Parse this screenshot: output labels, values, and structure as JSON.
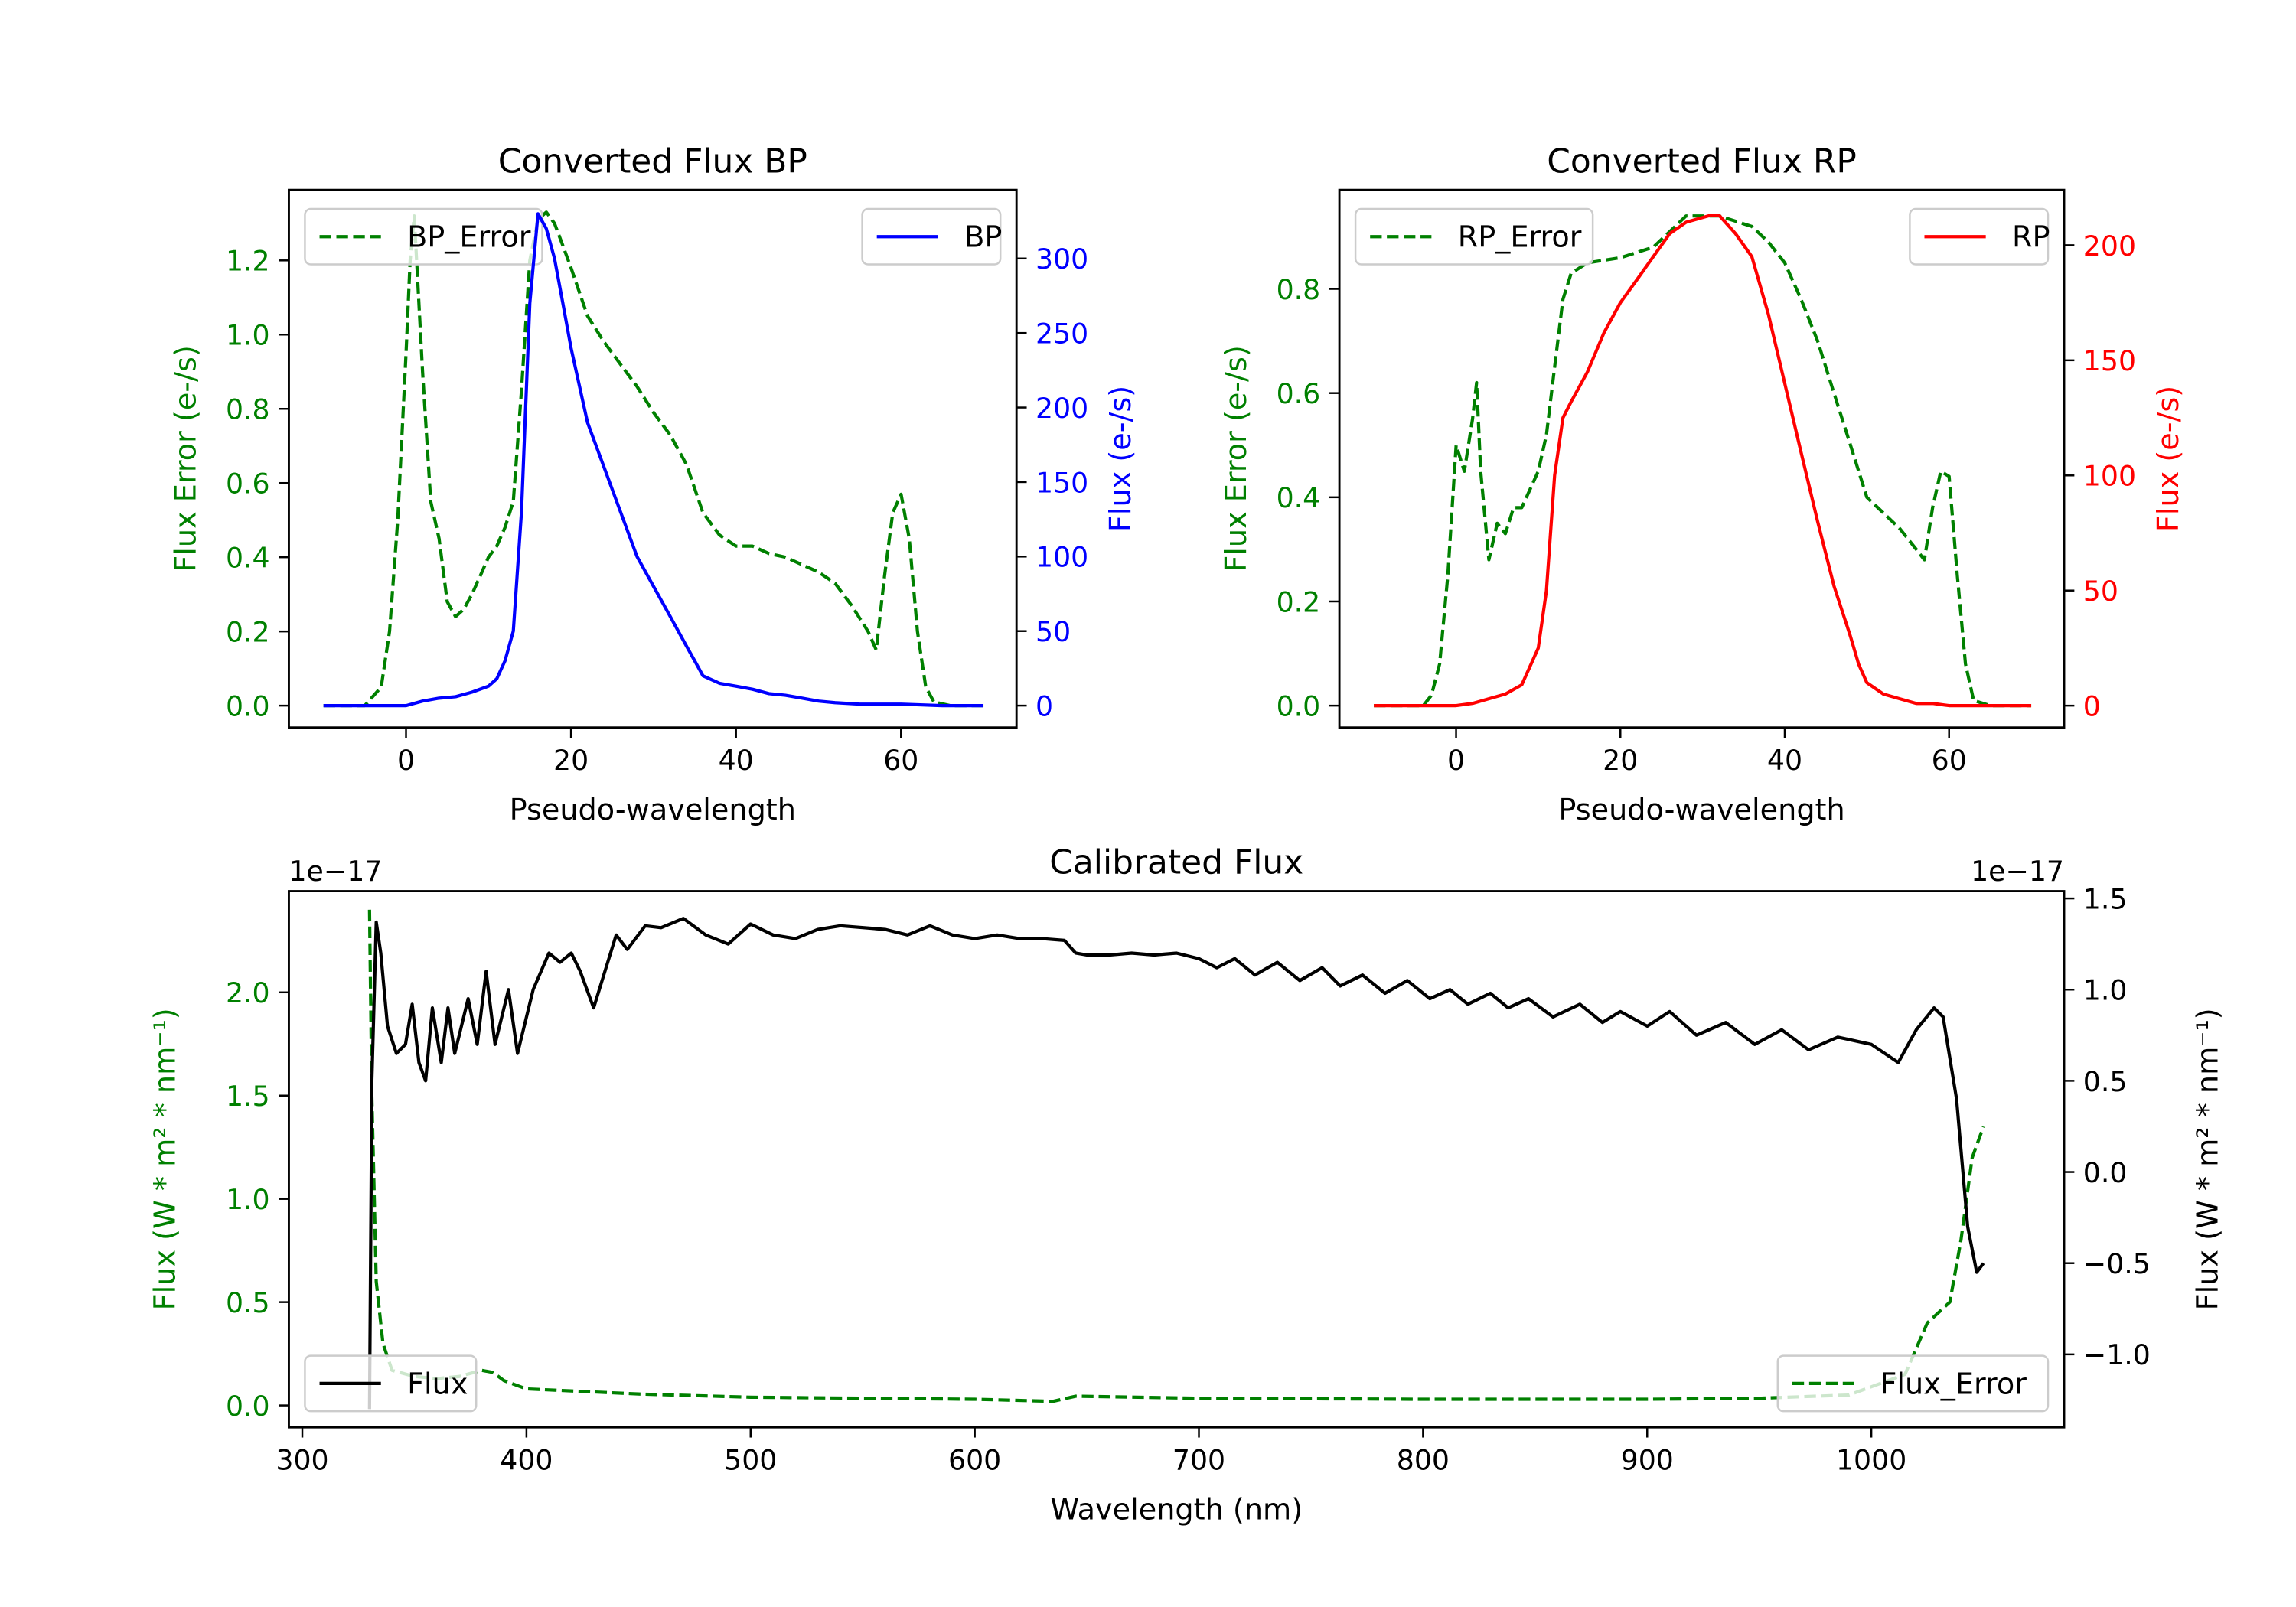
{
  "colors": {
    "error": "#008000",
    "bp": "#0000ff",
    "rp": "#ff0000",
    "flux": "#000000"
  },
  "chart_data": [
    {
      "type": "line",
      "title": "Converted Flux BP",
      "xlabel": "Pseudo-wavelength",
      "ylabel_left": "Flux Error (e-/s)",
      "ylabel_right": "Flux (e-/s)",
      "ylabel_right_color": "#0000ff",
      "ylabel_left_color": "#008000",
      "xlim": [
        -14.2,
        74
      ],
      "ylim_left": [
        -0.059,
        1.39
      ],
      "ylim_right": [
        -14.7,
        346
      ],
      "xticks": [
        0,
        20,
        40,
        60
      ],
      "yticks_left": [
        "0.0",
        "0.2",
        "0.4",
        "0.6",
        "0.8",
        "1.0",
        "1.2"
      ],
      "yticks_right": [
        "0",
        "50",
        "100",
        "150",
        "200",
        "250",
        "300"
      ],
      "legend_left": "upper-left",
      "legend_right": "upper-right",
      "series": [
        {
          "name": "BP_Error",
          "axis": "left",
          "color": "#008000",
          "style": "dashed",
          "x": [
            -10,
            -5,
            -3,
            -2,
            -1,
            0,
            0.5,
            1,
            2,
            3,
            4,
            5,
            6,
            7,
            8,
            9,
            10,
            11,
            12,
            13,
            14,
            15,
            16,
            17,
            18,
            19,
            20,
            22,
            24,
            26,
            28,
            30,
            32,
            34,
            36,
            38,
            40,
            42,
            44,
            46,
            48,
            50,
            52,
            54,
            56,
            57,
            58,
            59,
            60,
            61,
            62,
            63,
            64,
            66,
            70
          ],
          "y": [
            0,
            0,
            0.05,
            0.2,
            0.5,
            0.95,
            1.2,
            1.32,
            0.9,
            0.55,
            0.45,
            0.28,
            0.24,
            0.26,
            0.3,
            0.35,
            0.4,
            0.43,
            0.48,
            0.55,
            0.85,
            1.2,
            1.31,
            1.33,
            1.3,
            1.24,
            1.18,
            1.05,
            0.98,
            0.92,
            0.86,
            0.79,
            0.73,
            0.65,
            0.52,
            0.46,
            0.43,
            0.43,
            0.41,
            0.4,
            0.38,
            0.36,
            0.33,
            0.27,
            0.2,
            0.15,
            0.35,
            0.52,
            0.57,
            0.45,
            0.2,
            0.05,
            0.01,
            0,
            0
          ]
        },
        {
          "name": "BP",
          "axis": "right",
          "color": "#0000ff",
          "style": "solid",
          "x": [
            -10,
            0,
            2,
            4,
            6,
            8,
            10,
            11,
            12,
            13,
            14,
            15,
            16,
            17,
            18,
            19,
            20,
            22,
            24,
            26,
            28,
            30,
            32,
            34,
            35,
            36,
            38,
            40,
            42,
            44,
            46,
            48,
            50,
            52,
            55,
            60,
            65,
            70
          ],
          "y": [
            0,
            0,
            3,
            5,
            6,
            9,
            13,
            18,
            30,
            50,
            130,
            270,
            330,
            320,
            300,
            270,
            240,
            190,
            160,
            130,
            100,
            80,
            60,
            40,
            30,
            20,
            15,
            13,
            11,
            8,
            7,
            5,
            3,
            2,
            1,
            1,
            0,
            0
          ]
        }
      ]
    },
    {
      "type": "line",
      "title": "Converted Flux RP",
      "xlabel": "Pseudo-wavelength",
      "ylabel_left": "Flux Error (e-/s)",
      "ylabel_right": "Flux (e-/s)",
      "ylabel_right_color": "#ff0000",
      "ylabel_left_color": "#008000",
      "xlim": [
        -14.2,
        74
      ],
      "ylim_left": [
        -0.042,
        0.99
      ],
      "ylim_right": [
        -9.5,
        224
      ],
      "xticks": [
        0,
        20,
        40,
        60
      ],
      "yticks_left": [
        "0.0",
        "0.2",
        "0.4",
        "0.6",
        "0.8"
      ],
      "yticks_right": [
        "0",
        "50",
        "100",
        "150",
        "200"
      ],
      "legend_left": "upper-left",
      "legend_right": "upper-right",
      "series": [
        {
          "name": "RP_Error",
          "axis": "left",
          "color": "#008000",
          "style": "dashed",
          "x": [
            -10,
            -4,
            -3,
            -2,
            -1,
            0,
            1,
            2,
            2.5,
            3,
            4,
            5,
            6,
            7,
            8,
            10,
            11,
            12,
            13,
            14,
            16,
            20,
            22,
            24,
            26,
            28,
            30,
            32,
            34,
            36,
            38,
            40,
            42,
            44,
            46,
            48,
            50,
            52,
            54,
            56,
            57,
            58,
            59,
            60,
            61,
            62,
            63,
            65,
            70
          ],
          "y": [
            0,
            0,
            0.02,
            0.08,
            0.25,
            0.5,
            0.45,
            0.55,
            0.62,
            0.45,
            0.28,
            0.35,
            0.33,
            0.38,
            0.38,
            0.45,
            0.52,
            0.65,
            0.78,
            0.83,
            0.85,
            0.86,
            0.87,
            0.88,
            0.91,
            0.94,
            0.94,
            0.94,
            0.93,
            0.92,
            0.89,
            0.85,
            0.78,
            0.7,
            0.6,
            0.5,
            0.4,
            0.37,
            0.34,
            0.3,
            0.28,
            0.38,
            0.45,
            0.44,
            0.25,
            0.08,
            0.01,
            0,
            0
          ]
        },
        {
          "name": "RP",
          "axis": "right",
          "color": "#ff0000",
          "style": "solid",
          "x": [
            -10,
            0,
            2,
            4,
            6,
            8,
            10,
            11,
            12,
            13,
            14,
            16,
            18,
            20,
            22,
            24,
            26,
            28,
            30,
            31,
            32,
            34,
            36,
            38,
            40,
            42,
            44,
            46,
            48,
            49,
            50,
            52,
            54,
            56,
            58,
            60,
            65,
            70
          ],
          "y": [
            0,
            0,
            1,
            3,
            5,
            9,
            25,
            50,
            100,
            125,
            132,
            145,
            162,
            175,
            185,
            195,
            205,
            210,
            212,
            213,
            213,
            205,
            195,
            170,
            140,
            110,
            80,
            52,
            30,
            18,
            10,
            5,
            3,
            1,
            1,
            0,
            0,
            0
          ]
        }
      ]
    },
    {
      "type": "line",
      "title": "Calibrated Flux",
      "xlabel": "Wavelength (nm)",
      "ylabel_left": "Flux (W * m² * nm⁻¹)",
      "ylabel_right": "Flux (W * m² * nm⁻¹)",
      "ylabel_left_color": "#008000",
      "ylabel_right_color": "#000000",
      "offset_left": "1e−17",
      "offset_right": "1e−17",
      "xlim": [
        294,
        1086
      ],
      "ylim_left": [
        -0.106,
        2.49
      ],
      "ylim_right": [
        -1.4,
        1.54
      ],
      "xticks": [
        300,
        400,
        500,
        600,
        700,
        800,
        900,
        1000
      ],
      "yticks_left": [
        "0.0",
        "0.5",
        "1.0",
        "1.5",
        "2.0"
      ],
      "yticks_right": [
        "−1.0",
        "−0.5",
        "0.0",
        "0.5",
        "1.0",
        "1.5"
      ],
      "legend_left": "lower-right",
      "legend_right": "lower-left",
      "series": [
        {
          "name": "Flux_Error",
          "axis": "left",
          "color": "#008000",
          "style": "dashed",
          "x": [
            330,
            331,
            333,
            336,
            340,
            350,
            360,
            370,
            380,
            385,
            390,
            400,
            420,
            450,
            500,
            600,
            635,
            645,
            700,
            800,
            900,
            950,
            990,
            1015,
            1025,
            1035,
            1040,
            1045,
            1050
          ],
          "y": [
            2.4,
            1.5,
            0.6,
            0.3,
            0.17,
            0.14,
            0.13,
            0.14,
            0.17,
            0.16,
            0.12,
            0.08,
            0.07,
            0.055,
            0.04,
            0.03,
            0.02,
            0.045,
            0.035,
            0.03,
            0.03,
            0.035,
            0.05,
            0.15,
            0.4,
            0.5,
            0.8,
            1.2,
            1.35
          ]
        },
        {
          "name": "Flux",
          "axis": "right",
          "color": "#000000",
          "style": "solid",
          "x": [
            330,
            331,
            333,
            335,
            338,
            342,
            346,
            349,
            352,
            355,
            358,
            362,
            365,
            368,
            370,
            374,
            378,
            382,
            386,
            392,
            396,
            403,
            410,
            415,
            420,
            424,
            430,
            435,
            440,
            445,
            453,
            460,
            470,
            480,
            490,
            500,
            510,
            520,
            530,
            540,
            560,
            570,
            580,
            590,
            600,
            610,
            620,
            630,
            640,
            645,
            650,
            660,
            670,
            680,
            690,
            700,
            708,
            716,
            725,
            735,
            745,
            755,
            763,
            773,
            783,
            793,
            803,
            812,
            820,
            830,
            838,
            847,
            858,
            870,
            880,
            888,
            900,
            910,
            922,
            935,
            948,
            960,
            972,
            985,
            1000,
            1012,
            1020,
            1028,
            1032,
            1038,
            1043,
            1047,
            1050
          ],
          "y": [
            -1.3,
            0.5,
            1.37,
            1.2,
            0.8,
            0.65,
            0.7,
            0.92,
            0.6,
            0.5,
            0.9,
            0.6,
            0.9,
            0.65,
            0.75,
            0.95,
            0.7,
            1.1,
            0.7,
            1.0,
            0.65,
            1.0,
            1.2,
            1.15,
            1.2,
            1.1,
            0.9,
            1.1,
            1.3,
            1.22,
            1.35,
            1.34,
            1.39,
            1.3,
            1.25,
            1.36,
            1.3,
            1.28,
            1.33,
            1.35,
            1.33,
            1.3,
            1.35,
            1.3,
            1.28,
            1.3,
            1.28,
            1.28,
            1.27,
            1.2,
            1.19,
            1.19,
            1.2,
            1.19,
            1.2,
            1.17,
            1.12,
            1.17,
            1.08,
            1.15,
            1.05,
            1.12,
            1.02,
            1.08,
            0.98,
            1.05,
            0.95,
            1.0,
            0.92,
            0.98,
            0.9,
            0.95,
            0.85,
            0.92,
            0.82,
            0.88,
            0.8,
            0.88,
            0.75,
            0.82,
            0.7,
            0.78,
            0.67,
            0.74,
            0.7,
            0.6,
            0.78,
            0.9,
            0.85,
            0.4,
            -0.3,
            -0.55,
            -0.5
          ]
        }
      ]
    }
  ]
}
